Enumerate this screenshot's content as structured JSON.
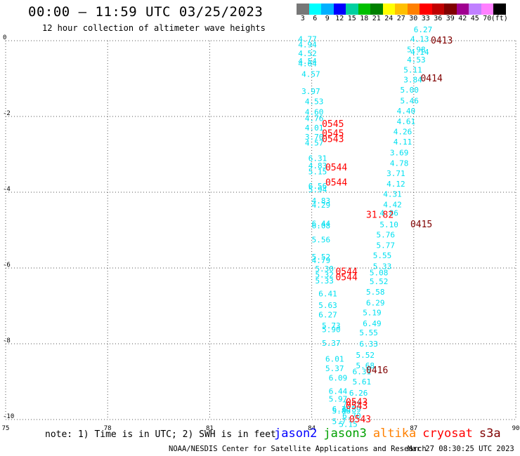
{
  "header": {
    "title": "00:00 – 11:59 UTC 03/25/2023",
    "subtitle": "12 hour collection of altimeter wave heights"
  },
  "colorbar": {
    "colors": [
      "#777777",
      "#00ffff",
      "#00b0ff",
      "#0000ff",
      "#00d0a0",
      "#00c000",
      "#008000",
      "#ffff00",
      "#ffc000",
      "#ff8000",
      "#ff0000",
      "#c00000",
      "#800000",
      "#a00090",
      "#c080ff",
      "#ff80ff",
      "#000000"
    ],
    "labels": [
      "3",
      "6",
      "9",
      "12",
      "15",
      "18",
      "21",
      "24",
      "27",
      "30",
      "33",
      "36",
      "39",
      "42",
      "45",
      "70",
      "(ft)"
    ]
  },
  "footer": {
    "note": "note: 1) Time is in UTC; 2) SWH is in feet",
    "legend": [
      {
        "name": "jason2",
        "color": "#0000ff"
      },
      {
        "name": "jason3",
        "color": "#00a000"
      },
      {
        "name": "altika",
        "color": "#ff8000"
      },
      {
        "name": "cryosat",
        "color": "#ff0000"
      },
      {
        "name": "s3a",
        "color": "#800000"
      }
    ],
    "credit": "NOAA/NESDIS Center for Satellite Applications and Research",
    "timestamp": "Mar 27 08:30:25 UTC 2023"
  },
  "chart_data": {
    "type": "scatter",
    "xlim": [
      75,
      90
    ],
    "ylim": [
      -10,
      0
    ],
    "x_ticks": [
      75,
      78,
      81,
      84,
      87,
      90
    ],
    "y_ticks": [
      0,
      -2,
      -4,
      -6,
      -8,
      -10
    ],
    "grid": true,
    "series": [
      {
        "color": "#00e0f0",
        "points": [
          {
            "x": 83.6,
            "y": 0.05,
            "label": "4.77"
          },
          {
            "x": 83.6,
            "y": -0.1,
            "label": "4.94"
          },
          {
            "x": 83.6,
            "y": -0.33,
            "label": "4.52"
          },
          {
            "x": 83.6,
            "y": -0.54,
            "label": "4.54"
          },
          {
            "x": 83.6,
            "y": -0.6,
            "label": "4.64"
          },
          {
            "x": 83.7,
            "y": -0.88,
            "label": "4.57"
          },
          {
            "x": 83.7,
            "y": -1.33,
            "label": "3.97"
          },
          {
            "x": 83.8,
            "y": -1.6,
            "label": "4.53"
          },
          {
            "x": 83.8,
            "y": -1.88,
            "label": "4.60"
          },
          {
            "x": 83.8,
            "y": -2.05,
            "label": "4.76"
          },
          {
            "x": 83.8,
            "y": -2.3,
            "label": "4.01"
          },
          {
            "x": 83.8,
            "y": -2.54,
            "label": "3.70"
          },
          {
            "x": 83.8,
            "y": -2.69,
            "label": "4.57"
          },
          {
            "x": 83.9,
            "y": -3.1,
            "label": "6.31"
          },
          {
            "x": 83.9,
            "y": -3.3,
            "label": "4.83"
          },
          {
            "x": 83.9,
            "y": -3.45,
            "label": "5.15"
          },
          {
            "x": 83.9,
            "y": -3.83,
            "label": "6.56"
          },
          {
            "x": 83.9,
            "y": -3.93,
            "label": "5.94"
          },
          {
            "x": 84.0,
            "y": -4.22,
            "label": "4.83"
          },
          {
            "x": 84.0,
            "y": -4.33,
            "label": "4.29"
          },
          {
            "x": 84.0,
            "y": -4.82,
            "label": "6.44"
          },
          {
            "x": 84.0,
            "y": -4.88,
            "label": "6.08"
          },
          {
            "x": 84.0,
            "y": -5.25,
            "label": "5.56"
          },
          {
            "x": 84.0,
            "y": -5.7,
            "label": "5.52"
          },
          {
            "x": 84.0,
            "y": -5.8,
            "label": "4.79"
          },
          {
            "x": 84.1,
            "y": -6.02,
            "label": "5.30"
          },
          {
            "x": 84.1,
            "y": -6.18,
            "label": "5.32"
          },
          {
            "x": 84.1,
            "y": -6.33,
            "label": "5.33"
          },
          {
            "x": 84.2,
            "y": -6.68,
            "label": "6.41"
          },
          {
            "x": 84.2,
            "y": -6.98,
            "label": "5.63"
          },
          {
            "x": 84.2,
            "y": -7.23,
            "label": "6.27"
          },
          {
            "x": 84.3,
            "y": -7.52,
            "label": "5.73"
          },
          {
            "x": 84.3,
            "y": -7.62,
            "label": "5.90"
          },
          {
            "x": 84.3,
            "y": -7.98,
            "label": "5.37"
          },
          {
            "x": 84.4,
            "y": -8.4,
            "label": "6.01"
          },
          {
            "x": 84.4,
            "y": -8.65,
            "label": "5.37"
          },
          {
            "x": 84.5,
            "y": -8.9,
            "label": "6.09"
          },
          {
            "x": 84.5,
            "y": -9.25,
            "label": "6.44"
          },
          {
            "x": 84.5,
            "y": -9.45,
            "label": "5.97"
          },
          {
            "x": 84.6,
            "y": -9.72,
            "label": "6.36"
          },
          {
            "x": 84.6,
            "y": -9.77,
            "label": "5.88"
          },
          {
            "x": 84.6,
            "y": -10.05,
            "label": "5.7"
          },
          {
            "x": 84.8,
            "y": -10.12,
            "label": "5.15"
          },
          {
            "x": 84.9,
            "y": -9.9,
            "label": "6.70"
          },
          {
            "x": 84.9,
            "y": -9.6,
            "label": "7.22"
          },
          {
            "x": 84.9,
            "y": -9.73,
            "label": "6.89"
          },
          {
            "x": 85.1,
            "y": -9.3,
            "label": "6.26"
          },
          {
            "x": 85.2,
            "y": -9.0,
            "label": "5.61"
          },
          {
            "x": 85.2,
            "y": -8.73,
            "label": "6.31"
          },
          {
            "x": 85.3,
            "y": -8.57,
            "label": "5.68"
          },
          {
            "x": 85.3,
            "y": -8.3,
            "label": "5.52"
          },
          {
            "x": 85.4,
            "y": -8.0,
            "label": "6.33"
          },
          {
            "x": 85.4,
            "y": -7.7,
            "label": "5.55"
          },
          {
            "x": 85.5,
            "y": -7.46,
            "label": "6.49"
          },
          {
            "x": 85.5,
            "y": -7.18,
            "label": "5.19"
          },
          {
            "x": 85.6,
            "y": -6.92,
            "label": "6.29"
          },
          {
            "x": 85.6,
            "y": -6.63,
            "label": "5.58"
          },
          {
            "x": 85.7,
            "y": -6.35,
            "label": "5.52"
          },
          {
            "x": 85.7,
            "y": -6.12,
            "label": "5.08"
          },
          {
            "x": 85.8,
            "y": -5.95,
            "label": "5.33"
          },
          {
            "x": 85.8,
            "y": -5.67,
            "label": "5.55"
          },
          {
            "x": 85.9,
            "y": -5.4,
            "label": "5.77"
          },
          {
            "x": 85.9,
            "y": -5.12,
            "label": "5.76"
          },
          {
            "x": 86.0,
            "y": -4.85,
            "label": "5.10"
          },
          {
            "x": 86.0,
            "y": -4.55,
            "label": "4.86"
          },
          {
            "x": 86.1,
            "y": -4.32,
            "label": "4.42"
          },
          {
            "x": 86.1,
            "y": -4.05,
            "label": "4.31"
          },
          {
            "x": 86.2,
            "y": -3.78,
            "label": "4.12"
          },
          {
            "x": 86.2,
            "y": -3.5,
            "label": "3.71"
          },
          {
            "x": 86.3,
            "y": -3.23,
            "label": "4.78"
          },
          {
            "x": 86.3,
            "y": -2.95,
            "label": "3.69"
          },
          {
            "x": 86.4,
            "y": -2.67,
            "label": "4.11"
          },
          {
            "x": 86.4,
            "y": -2.4,
            "label": "4.26"
          },
          {
            "x": 86.5,
            "y": -2.13,
            "label": "4.61"
          },
          {
            "x": 86.5,
            "y": -1.85,
            "label": "4.40"
          },
          {
            "x": 86.6,
            "y": -1.58,
            "label": "5.46"
          },
          {
            "x": 86.6,
            "y": -1.3,
            "label": "5.00"
          },
          {
            "x": 86.7,
            "y": -1.03,
            "label": "3.84"
          },
          {
            "x": 86.7,
            "y": -0.77,
            "label": "5.11"
          },
          {
            "x": 86.8,
            "y": -0.5,
            "label": "4.53"
          },
          {
            "x": 86.8,
            "y": -0.23,
            "label": "5.98"
          },
          {
            "x": 86.9,
            "y": 0.05,
            "label": "4.13"
          },
          {
            "x": 86.9,
            "y": -0.3,
            "label": "4.14"
          },
          {
            "x": 87.0,
            "y": 0.3,
            "label": "6.27"
          }
        ]
      },
      {
        "color": "#ff0000",
        "points": [
          {
            "x": 85.6,
            "y": -4.6,
            "label": "31.82"
          },
          {
            "x": 84.3,
            "y": -2.2,
            "label": "0545"
          },
          {
            "x": 84.3,
            "y": -2.45,
            "label": "0545"
          },
          {
            "x": 84.3,
            "y": -2.6,
            "label": "0543"
          },
          {
            "x": 84.4,
            "y": -3.35,
            "label": "0544"
          },
          {
            "x": 84.4,
            "y": -3.75,
            "label": "0544"
          },
          {
            "x": 84.7,
            "y": -6.1,
            "label": "0544"
          },
          {
            "x": 84.7,
            "y": -6.25,
            "label": "0544"
          },
          {
            "x": 85.0,
            "y": -9.55,
            "label": "0543"
          },
          {
            "x": 85.0,
            "y": -9.65,
            "label": "0543"
          },
          {
            "x": 85.1,
            "y": -10.0,
            "label": "0543"
          }
        ]
      },
      {
        "color": "#800000",
        "points": [
          {
            "x": 87.5,
            "y": 0.0,
            "label": "0413"
          },
          {
            "x": 87.2,
            "y": -1.0,
            "label": "0414"
          },
          {
            "x": 86.9,
            "y": -4.85,
            "label": "0415"
          },
          {
            "x": 85.6,
            "y": -8.7,
            "label": "0416"
          }
        ]
      }
    ]
  }
}
